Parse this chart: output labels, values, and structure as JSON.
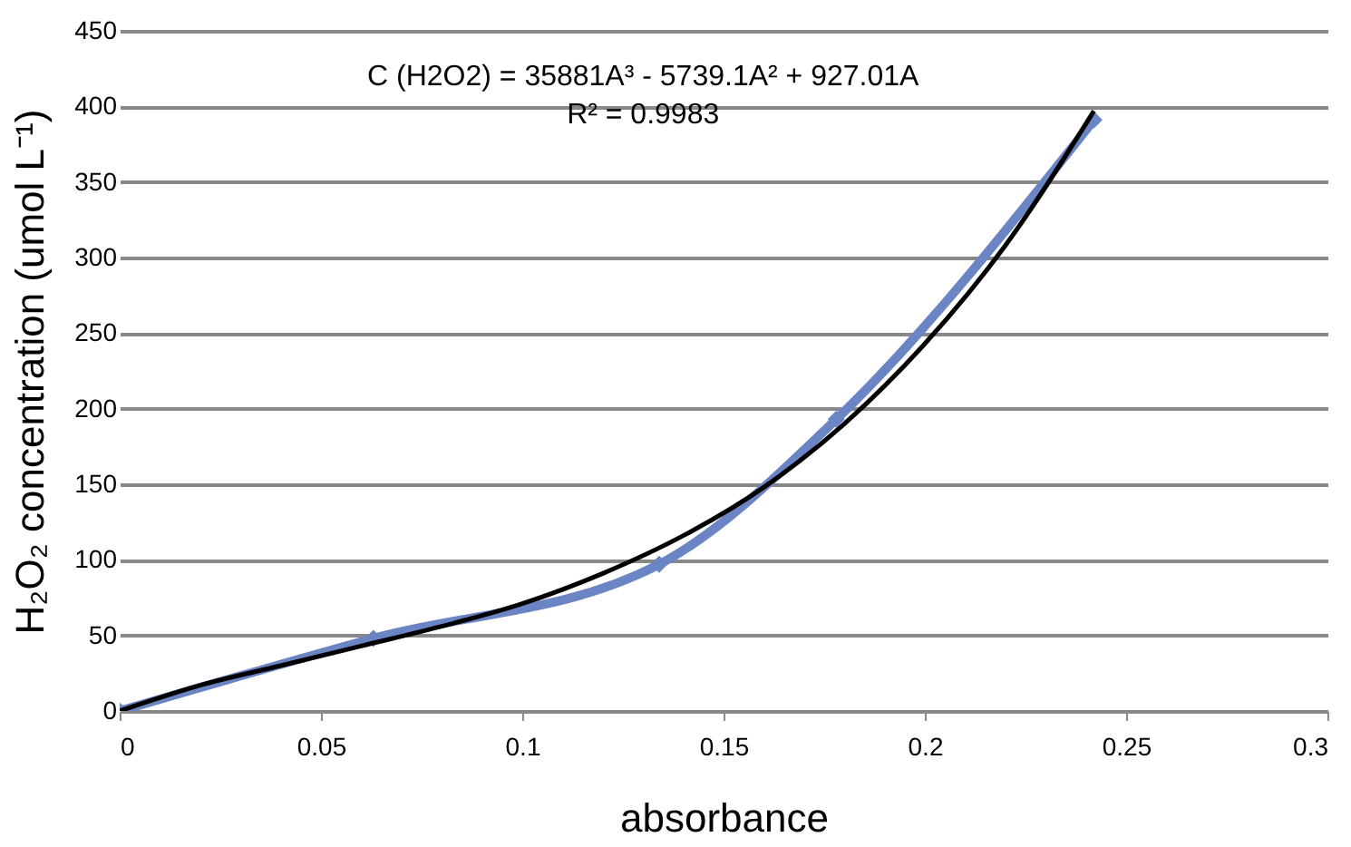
{
  "chart_data": {
    "type": "line",
    "xlabel": "absorbance",
    "ylabel": "H₂O₂ concentration (umol L⁻¹)",
    "xlim": [
      0,
      0.3
    ],
    "ylim": [
      0,
      450
    ],
    "xticks": [
      0,
      0.05,
      0.1,
      0.15,
      0.2,
      0.25,
      0.3
    ],
    "yticks": [
      0,
      50,
      100,
      150,
      200,
      250,
      300,
      350,
      400,
      450
    ],
    "grid": "y",
    "annotations": [
      "C (H2O2) = 35881A³ - 5739.1A² + 927.01A",
      "R² = 0.9983"
    ],
    "series": [
      {
        "color": "#6b84c4",
        "marker": "diamond",
        "x": [
          0,
          0.063,
          0.134,
          0.178,
          0.242
        ],
        "values": [
          0,
          48,
          97,
          193,
          391
        ]
      },
      {
        "color": "#000000",
        "marker": "none",
        "x": [
          0,
          0.02,
          0.04,
          0.06,
          0.08,
          0.1,
          0.12,
          0.14,
          0.16,
          0.18,
          0.2,
          0.22,
          0.242
        ],
        "values": [
          0,
          17,
          30,
          43,
          56,
          71,
          91,
          116,
          148,
          190,
          243,
          308,
          397
        ]
      }
    ]
  }
}
